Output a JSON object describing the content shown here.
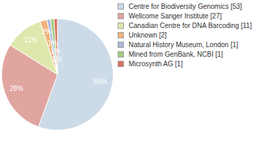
{
  "chart_data": {
    "type": "pie",
    "categories": [
      "Centre for Biodiversity Genomics [53]",
      "Wellcome Sanger Institute [27]",
      "Canadian Centre for DNA Barcoding [11]",
      "Unknown [2]",
      "Natural History Museum, London [1]",
      "Mined from GenBank, NCBI [1]",
      "Microsynth AG [1]"
    ],
    "values": [
      55,
      28,
      11,
      2,
      1,
      1,
      1
    ],
    "value_labels": [
      "55%",
      "28%",
      "11%",
      "2%",
      "1%",
      "1%",
      "1%"
    ],
    "colors": [
      "#cddbe8",
      "#e0a59e",
      "#dfe8ac",
      "#f2b27c",
      "#a9b9de",
      "#a0cc7c",
      "#d9735f"
    ],
    "data_labels": true,
    "legend": "right"
  }
}
